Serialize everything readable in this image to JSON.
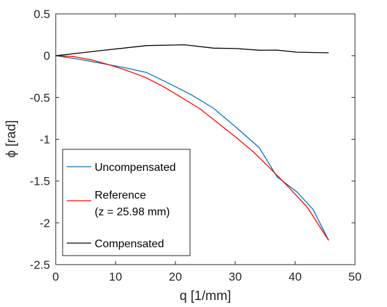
{
  "chart_data": {
    "type": "line",
    "title": "",
    "xlabel": "q [1/mm]",
    "ylabel": "ϕ [rad]",
    "xlim": [
      0,
      50
    ],
    "ylim": [
      -2.5,
      0.5
    ],
    "xticks": [
      0,
      10,
      20,
      30,
      40,
      50
    ],
    "yticks": [
      0.5,
      0,
      -0.5,
      -1,
      -1.5,
      -2,
      -2.5
    ],
    "xtick_labels": [
      "0",
      "10",
      "20",
      "30",
      "40",
      "50"
    ],
    "ytick_labels": [
      "0.5",
      "0",
      "-0.5",
      "-1",
      "-1.5",
      "-2",
      "-2.5"
    ],
    "grid": false,
    "legend_position": "bottom-left",
    "series": [
      {
        "name": "Uncompensated",
        "color": "#0072bd",
        "points": [
          [
            0,
            0
          ],
          [
            3.7,
            -0.04
          ],
          [
            7.5,
            -0.09
          ],
          [
            11.3,
            -0.14
          ],
          [
            15.1,
            -0.2
          ],
          [
            18.9,
            -0.33
          ],
          [
            22.7,
            -0.47
          ],
          [
            26.4,
            -0.63
          ],
          [
            30.2,
            -0.86
          ],
          [
            34.0,
            -1.1
          ],
          [
            37.0,
            -1.45
          ],
          [
            40.3,
            -1.63
          ],
          [
            43.0,
            -1.84
          ],
          [
            45.6,
            -2.21
          ]
        ]
      },
      {
        "name": "Reference",
        "name_line2": "(z = 25.98 mm)",
        "color": "#ff0000",
        "points": [
          [
            0,
            0
          ],
          [
            3,
            -0.01
          ],
          [
            6,
            -0.05
          ],
          [
            9,
            -0.11
          ],
          [
            12,
            -0.18
          ],
          [
            15,
            -0.26
          ],
          [
            18,
            -0.37
          ],
          [
            21,
            -0.5
          ],
          [
            24,
            -0.63
          ],
          [
            27,
            -0.8
          ],
          [
            30,
            -0.97
          ],
          [
            33,
            -1.15
          ],
          [
            36,
            -1.36
          ],
          [
            39,
            -1.58
          ],
          [
            42,
            -1.81
          ],
          [
            45.6,
            -2.21
          ]
        ]
      },
      {
        "name": "Compensated",
        "color": "#000000",
        "points": [
          [
            0,
            0
          ],
          [
            3.7,
            0.03
          ],
          [
            7.5,
            0.06
          ],
          [
            11.3,
            0.09
          ],
          [
            15.1,
            0.12
          ],
          [
            21.5,
            0.13
          ],
          [
            26.4,
            0.09
          ],
          [
            30.2,
            0.085
          ],
          [
            34.0,
            0.065
          ],
          [
            37.0,
            0.066
          ],
          [
            40.3,
            0.042
          ],
          [
            45.6,
            0.035
          ]
        ]
      }
    ]
  }
}
